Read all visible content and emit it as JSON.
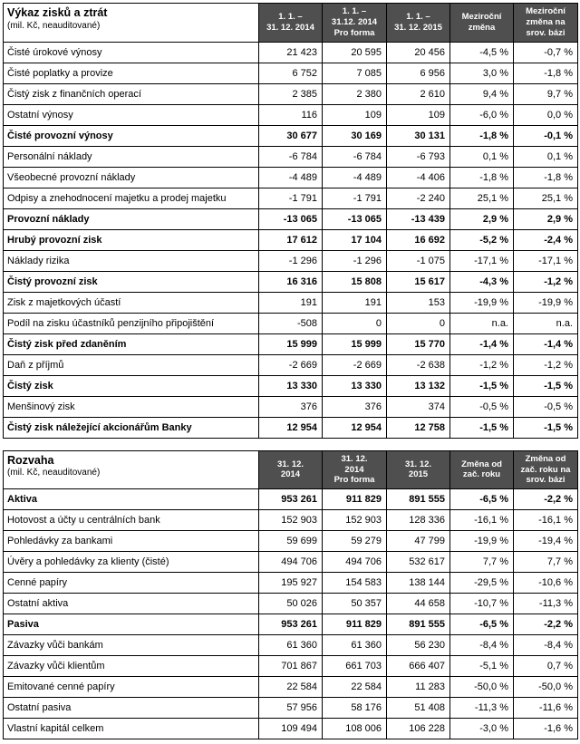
{
  "income_statement": {
    "title": "Výkaz zisků a ztrát",
    "subtitle": "(mil. Kč, neauditované)",
    "columns": [
      "1. 1. –\n31. 12. 2014",
      "1. 1. –\n31.12. 2014\nPro forma",
      "1. 1. –\n31. 12. 2015",
      "Meziroční\nzměna",
      "Meziroční\nzměna na\nsrov. bázi"
    ],
    "rows": [
      {
        "label": "Čisté úrokové výnosy",
        "bold": false,
        "values": [
          "21 423",
          "20 595",
          "20 456",
          "-4,5 %",
          "-0,7 %"
        ]
      },
      {
        "label": "Čisté poplatky a provize",
        "bold": false,
        "values": [
          "6 752",
          "7 085",
          "6 956",
          "3,0 %",
          "-1,8 %"
        ]
      },
      {
        "label": "Čistý zisk z finančních operací",
        "bold": false,
        "values": [
          "2 385",
          "2 380",
          "2 610",
          "9,4 %",
          "9,7 %"
        ]
      },
      {
        "label": "Ostatní výnosy",
        "bold": false,
        "values": [
          "116",
          "109",
          "109",
          "-6,0 %",
          "0,0 %"
        ]
      },
      {
        "label": "Čisté provozní výnosy",
        "bold": true,
        "values": [
          "30 677",
          "30 169",
          "30 131",
          "-1,8 %",
          "-0,1 %"
        ]
      },
      {
        "label": "Personální náklady",
        "bold": false,
        "values": [
          "-6 784",
          "-6 784",
          "-6 793",
          "0,1 %",
          "0,1 %"
        ]
      },
      {
        "label": "Všeobecné provozní náklady",
        "bold": false,
        "values": [
          "-4 489",
          "-4 489",
          "-4 406",
          "-1,8 %",
          "-1,8 %"
        ]
      },
      {
        "label": "Odpisy a znehodnocení majetku a prodej majetku",
        "bold": false,
        "values": [
          "-1 791",
          "-1 791",
          "-2 240",
          "25,1 %",
          "25,1 %"
        ]
      },
      {
        "label": "Provozní náklady",
        "bold": true,
        "values": [
          "-13 065",
          "-13 065",
          "-13 439",
          "2,9 %",
          "2,9 %"
        ]
      },
      {
        "label": "Hrubý provozní zisk",
        "bold": true,
        "values": [
          "17 612",
          "17 104",
          "16 692",
          "-5,2 %",
          "-2,4 %"
        ]
      },
      {
        "label": "Náklady rizika",
        "bold": false,
        "values": [
          "-1 296",
          "-1 296",
          "-1 075",
          "-17,1 %",
          "-17,1 %"
        ]
      },
      {
        "label": "Čistý provozní zisk",
        "bold": true,
        "values": [
          "16 316",
          "15 808",
          "15 617",
          "-4,3 %",
          "-1,2 %"
        ]
      },
      {
        "label": "Zisk z majetkových účastí",
        "bold": false,
        "values": [
          "191",
          "191",
          "153",
          "-19,9 %",
          "-19,9 %"
        ]
      },
      {
        "label": "Podíl na zisku účastníků penzijního připojištění",
        "bold": false,
        "values": [
          "-508",
          "0",
          "0",
          "n.a.",
          "n.a."
        ]
      },
      {
        "label": "Čistý zisk před zdaněním",
        "bold": true,
        "values": [
          "15 999",
          "15 999",
          "15 770",
          "-1,4 %",
          "-1,4 %"
        ]
      },
      {
        "label": "Daň z příjmů",
        "bold": false,
        "values": [
          "-2 669",
          "-2 669",
          "-2 638",
          "-1,2 %",
          "-1,2 %"
        ]
      },
      {
        "label": "Čistý zisk",
        "bold": true,
        "values": [
          "13 330",
          "13 330",
          "13 132",
          "-1,5 %",
          "-1,5 %"
        ]
      },
      {
        "label": "Menšinový zisk",
        "bold": false,
        "values": [
          "376",
          "376",
          "374",
          "-0,5 %",
          "-0,5 %"
        ]
      },
      {
        "label": "Čistý zisk náležející akcionářům Banky",
        "bold": true,
        "values": [
          "12 954",
          "12 954",
          "12 758",
          "-1,5 %",
          "-1,5 %"
        ]
      }
    ]
  },
  "balance_sheet": {
    "title": "Rozvaha",
    "subtitle": "(mil. Kč, neauditované)",
    "columns": [
      "31. 12.\n2014",
      "31. 12.\n2014\nPro forma",
      "31. 12.\n2015",
      "Změna od\nzač. roku",
      "Změna od\nzač. roku na\nsrov. bázi"
    ],
    "rows": [
      {
        "label": "Aktiva",
        "bold": true,
        "values": [
          "953 261",
          "911 829",
          "891 555",
          "-6,5 %",
          "-2,2 %"
        ]
      },
      {
        "label": "Hotovost a účty u centrálních bank",
        "bold": false,
        "values": [
          "152 903",
          "152 903",
          "128 336",
          "-16,1 %",
          "-16,1 %"
        ]
      },
      {
        "label": "Pohledávky za bankami",
        "bold": false,
        "values": [
          "59 699",
          "59 279",
          "47 799",
          "-19,9 %",
          "-19,4 %"
        ]
      },
      {
        "label": "Úvěry a pohledávky za klienty (čisté)",
        "bold": false,
        "values": [
          "494 706",
          "494 706",
          "532 617",
          "7,7 %",
          "7,7 %"
        ]
      },
      {
        "label": "Cenné papíry",
        "bold": false,
        "values": [
          "195 927",
          "154 583",
          "138 144",
          "-29,5 %",
          "-10,6 %"
        ]
      },
      {
        "label": "Ostatní aktiva",
        "bold": false,
        "values": [
          "50 026",
          "50 357",
          "44 658",
          "-10,7 %",
          "-11,3 %"
        ]
      },
      {
        "label": "Pasiva",
        "bold": true,
        "values": [
          "953 261",
          "911 829",
          "891 555",
          "-6,5 %",
          "-2,2 %"
        ]
      },
      {
        "label": "Závazky vůči bankám",
        "bold": false,
        "values": [
          "61 360",
          "61 360",
          "56 230",
          "-8,4 %",
          "-8,4 %"
        ]
      },
      {
        "label": "Závazky vůči klientům",
        "bold": false,
        "values": [
          "701 867",
          "661 703",
          "666 407",
          "-5,1 %",
          "0,7 %"
        ]
      },
      {
        "label": "Emitované cenné papíry",
        "bold": false,
        "values": [
          "22 584",
          "22 584",
          "11 283",
          "-50,0 %",
          "-50,0 %"
        ]
      },
      {
        "label": "Ostatní pasiva",
        "bold": false,
        "values": [
          "57 956",
          "58 176",
          "51 408",
          "-11,3 %",
          "-11,6 %"
        ]
      },
      {
        "label": "Vlastní kapitál celkem",
        "bold": false,
        "values": [
          "109 494",
          "108 006",
          "106 228",
          "-3,0 %",
          "-1,6 %"
        ]
      }
    ]
  }
}
